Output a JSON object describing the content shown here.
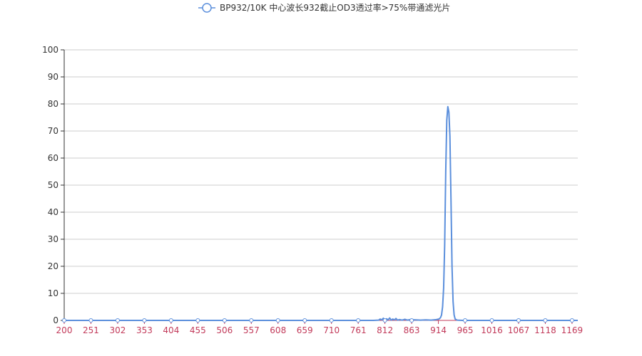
{
  "colors": {
    "series": "#5b8fdc",
    "grid": "#cccccc",
    "axis": "#333333",
    "xtick_text": "#c23a5a",
    "baseline": "#c23a5a"
  },
  "chart_data": {
    "type": "line",
    "title": "",
    "xlabel": "",
    "ylabel": "",
    "legend_position": "top-center",
    "grid": true,
    "ylim": [
      0,
      100
    ],
    "yticks": [
      0,
      10,
      20,
      30,
      40,
      50,
      60,
      70,
      80,
      90,
      100
    ],
    "xlim": [
      200,
      1180
    ],
    "xticks": [
      200,
      251,
      302,
      353,
      404,
      455,
      506,
      557,
      608,
      659,
      710,
      761,
      812,
      863,
      914,
      965,
      1016,
      1067,
      1118,
      1169
    ],
    "series": [
      {
        "name": "BP932/10K 中心波长932截止OD3透过率>75%带通滤光片",
        "x": [
          200,
          300,
          400,
          500,
          600,
          700,
          790,
          800,
          803,
          806,
          809,
          812,
          815,
          818,
          821,
          824,
          827,
          830,
          833,
          836,
          840,
          845,
          850,
          855,
          860,
          870,
          880,
          890,
          900,
          910,
          915,
          918,
          920,
          922,
          924,
          926,
          928,
          930,
          932,
          934,
          936,
          938,
          940,
          942,
          944,
          946,
          950,
          960,
          1000,
          1100,
          1180
        ],
        "y": [
          0,
          0,
          0,
          0,
          0,
          0,
          0,
          0.1,
          0.5,
          0.2,
          0.8,
          0.1,
          0.6,
          0.2,
          0.9,
          0.1,
          0.5,
          0.2,
          0.7,
          0.1,
          0.3,
          0.1,
          0.4,
          0.1,
          0.3,
          0.2,
          0.1,
          0.2,
          0.1,
          0.3,
          0.5,
          1,
          2,
          5,
          12,
          28,
          55,
          74,
          79,
          77,
          68,
          45,
          20,
          7,
          2,
          0.5,
          0.1,
          0,
          0,
          0,
          0
        ]
      }
    ]
  }
}
